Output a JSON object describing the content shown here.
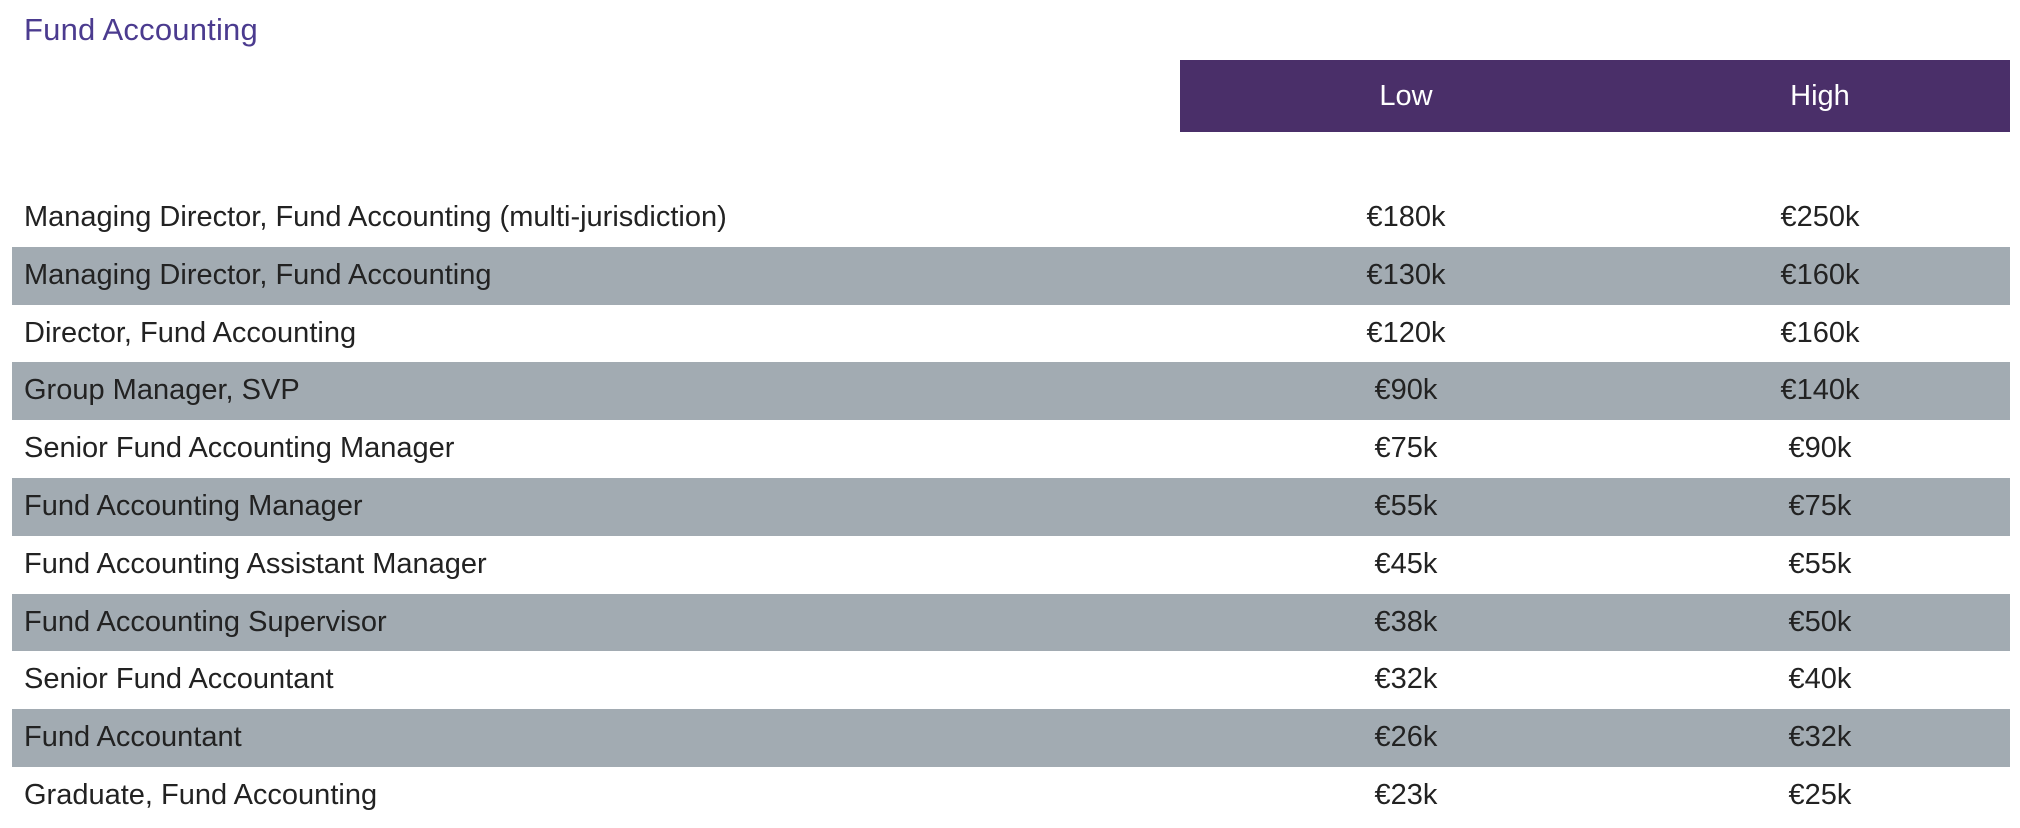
{
  "section": {
    "title": "Fund Accounting"
  },
  "header": {
    "low_label": "Low",
    "high_label": "High"
  },
  "colors": {
    "title": "#4b3b8f",
    "header_band": "#4a2f69",
    "row_shade": "#a2abb2"
  },
  "rows": [
    {
      "role": "Managing Director, Fund Accounting (multi-jurisdiction)",
      "low": "€180k",
      "high": "€250k"
    },
    {
      "role": "Managing Director, Fund Accounting",
      "low": "€130k",
      "high": "€160k"
    },
    {
      "role": "Director, Fund Accounting",
      "low": "€120k",
      "high": "€160k"
    },
    {
      "role": "Group Manager, SVP",
      "low": "€90k",
      "high": "€140k"
    },
    {
      "role": "Senior Fund Accounting Manager",
      "low": "€75k",
      "high": "€90k"
    },
    {
      "role": "Fund Accounting Manager",
      "low": "€55k",
      "high": "€75k"
    },
    {
      "role": "Fund Accounting Assistant Manager",
      "low": "€45k",
      "high": "€55k"
    },
    {
      "role": "Fund Accounting Supervisor",
      "low": "€38k",
      "high": "€50k"
    },
    {
      "role": "Senior Fund Accountant",
      "low": "€32k",
      "high": "€40k"
    },
    {
      "role": "Fund Accountant",
      "low": "€26k",
      "high": "€32k"
    },
    {
      "role": "Graduate, Fund Accounting",
      "low": "€23k",
      "high": "€25k"
    }
  ]
}
